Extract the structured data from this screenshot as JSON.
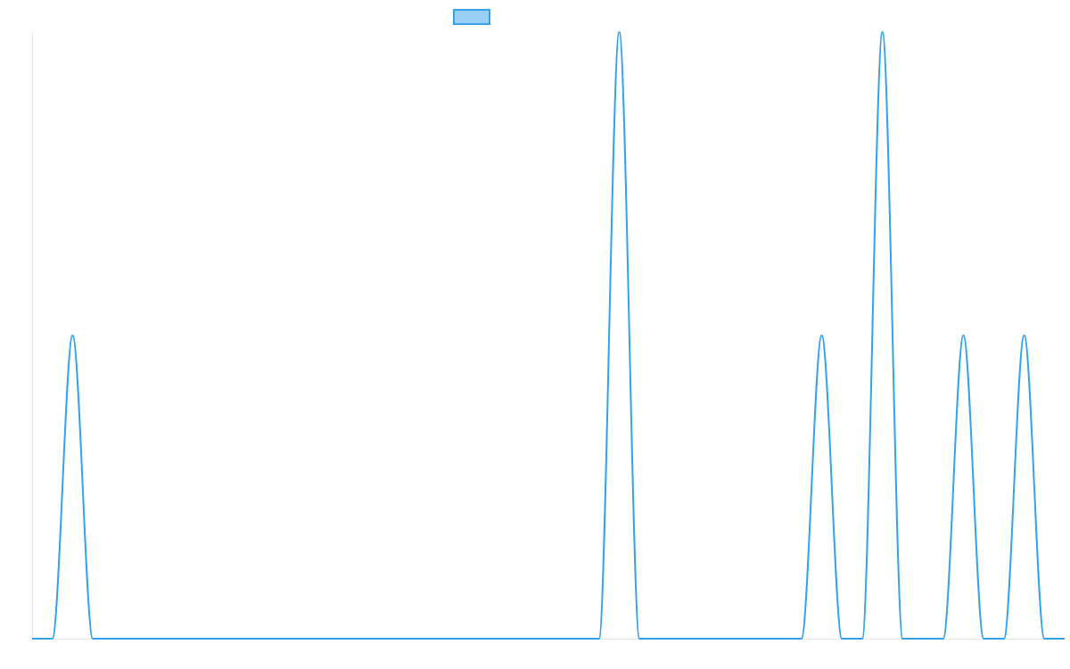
{
  "chart_data": {
    "type": "line",
    "title": "",
    "xlabel": "",
    "ylabel": "",
    "grid": false,
    "legend": "top-center",
    "series": [
      {
        "color": "#36a2eb",
        "fill": "rgba(54,162,235,0.5)",
        "x": [
          0,
          1,
          2,
          3,
          4,
          5,
          6,
          7,
          8,
          9,
          10,
          11,
          12,
          13,
          14,
          15,
          16,
          17,
          18,
          19,
          20,
          21,
          22,
          23,
          24,
          25,
          26,
          27,
          28,
          29,
          30,
          31,
          32,
          33,
          34,
          35,
          36,
          37,
          38,
          39,
          40,
          41,
          42,
          43,
          44,
          45,
          46,
          47,
          48,
          49,
          50,
          51
        ],
        "values": [
          0,
          0,
          1,
          0,
          0,
          0,
          0,
          0,
          0,
          0,
          0,
          0,
          0,
          0,
          0,
          0,
          0,
          0,
          0,
          0,
          0,
          0,
          0,
          0,
          0,
          0,
          0,
          0,
          0,
          2,
          0,
          0,
          0,
          0,
          0,
          0,
          0,
          0,
          0,
          1,
          0,
          0,
          2,
          0,
          0,
          0,
          1,
          0,
          0,
          1,
          0,
          0
        ]
      }
    ],
    "ylim": [
      0,
      2
    ],
    "xlim": [
      0,
      51
    ]
  }
}
